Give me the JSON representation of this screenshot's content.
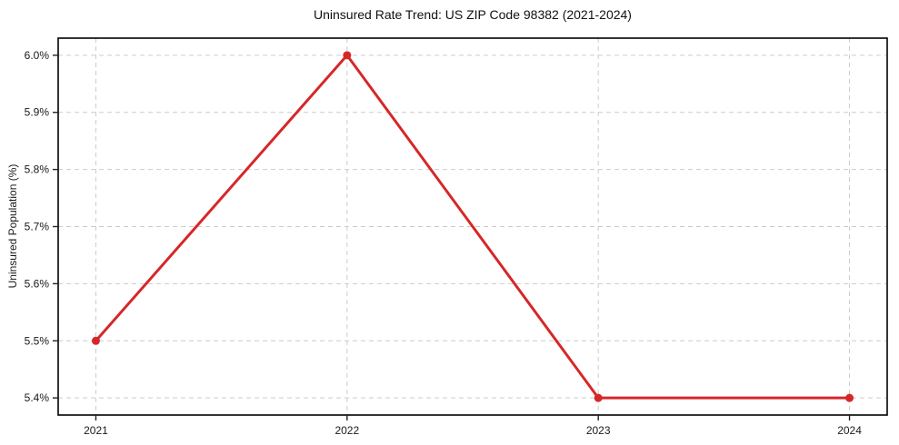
{
  "chart_data": {
    "type": "line",
    "title": "Uninsured Rate Trend: US ZIP Code 98382 (2021-2024)",
    "xlabel": "",
    "ylabel": "Uninsured Population (%)",
    "x": [
      2021,
      2022,
      2023,
      2024
    ],
    "categories": [
      "2021",
      "2022",
      "2023",
      "2024"
    ],
    "series": [
      {
        "name": "Uninsured Rate",
        "values": [
          5.5,
          6.0,
          5.4,
          5.4
        ]
      }
    ],
    "xlim": [
      2020.85,
      2024.15
    ],
    "ylim": [
      5.37,
      6.03
    ],
    "yticks": [
      5.4,
      5.5,
      5.6,
      5.7,
      5.8,
      5.9,
      6.0
    ],
    "ytick_labels": [
      "5.4%",
      "5.5%",
      "5.6%",
      "5.7%",
      "5.8%",
      "5.9%",
      "6.0%"
    ],
    "grid": true,
    "legend": "none",
    "line_color": "#d62728",
    "marker": "circle",
    "background_color": "#ffffff"
  }
}
